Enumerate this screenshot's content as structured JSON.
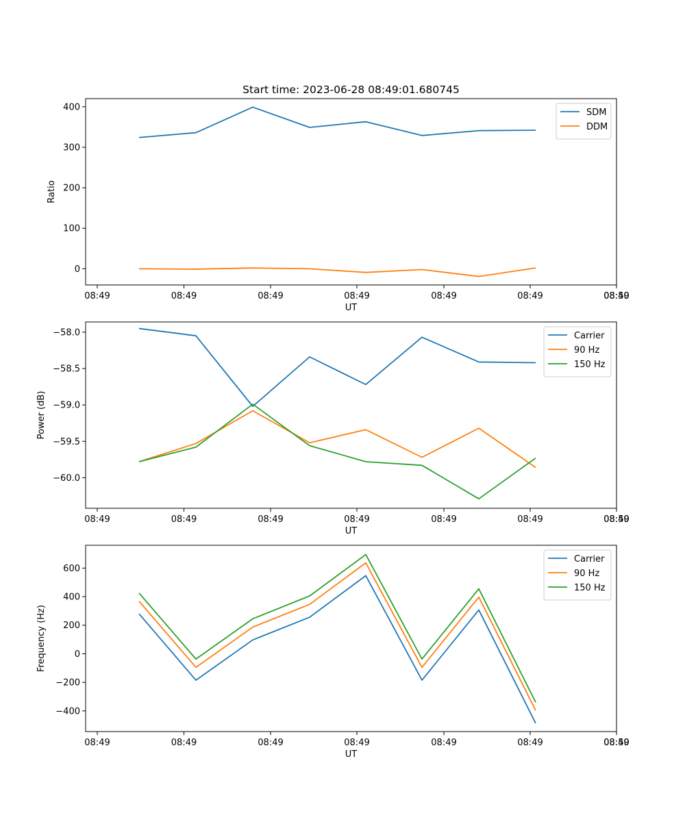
{
  "chart_data": {
    "title": "Start time: 2023-06-28 08:49:01.680745",
    "colors": {
      "blue": "#1f77b4",
      "orange": "#ff7f0e",
      "green": "#2ca02c"
    },
    "x_tick_labels": [
      "08:49",
      "08:49",
      "08:49",
      "08:49",
      "08:49",
      "08:49",
      "08:49",
      "08:50"
    ],
    "panels": [
      {
        "type": "line",
        "xlabel": "UT",
        "ylabel": "Ratio",
        "ylim": [
          -40,
          420
        ],
        "yticks": [
          0,
          100,
          200,
          300,
          400
        ],
        "ytick_labels": [
          "0",
          "100",
          "200",
          "300",
          "400"
        ],
        "legend_position": "top-right",
        "series": [
          {
            "name": "SDM",
            "color": "blue",
            "values": [
              324,
              336,
              399,
              349,
              363,
              329,
              341,
              342
            ]
          },
          {
            "name": "DDM",
            "color": "orange",
            "values": [
              0,
              -1,
              2,
              0,
              -9,
              -2,
              -19,
              2
            ]
          }
        ]
      },
      {
        "type": "line",
        "xlabel": "UT",
        "ylabel": "Power (dB)",
        "ylim": [
          -60.42,
          -57.86
        ],
        "yticks": [
          -58.0,
          -58.5,
          -59.0,
          -59.5,
          -60.0
        ],
        "ytick_labels": [
          "−58.0",
          "−58.5",
          "−59.0",
          "−59.5",
          "−60.0"
        ],
        "legend_position": "top-right",
        "series": [
          {
            "name": "Carrier",
            "color": "blue",
            "values": [
              -57.95,
              -58.05,
              -59.02,
              -58.34,
              -58.72,
              -58.07,
              -58.41,
              -58.42
            ]
          },
          {
            "name": "90 Hz",
            "color": "orange",
            "values": [
              -59.78,
              -59.53,
              -59.08,
              -59.52,
              -59.34,
              -59.72,
              -59.32,
              -59.86
            ]
          },
          {
            "name": "150 Hz",
            "color": "green",
            "values": [
              -59.78,
              -59.58,
              -58.99,
              -59.56,
              -59.78,
              -59.83,
              -60.29,
              -59.73
            ]
          }
        ]
      },
      {
        "type": "line",
        "xlabel": "UT",
        "ylabel": "Frequency (Hz)",
        "ylim": [
          -545,
          760
        ],
        "yticks": [
          600,
          400,
          200,
          0,
          -200,
          -400
        ],
        "ytick_labels": [
          "600",
          "400",
          "200",
          "0",
          "−200",
          "−400"
        ],
        "legend_position": "top-right",
        "series": [
          {
            "name": "Carrier",
            "color": "blue",
            "values": [
              280,
              -185,
              97,
              256,
              547,
              -185,
              307,
              -487
            ]
          },
          {
            "name": "90 Hz",
            "color": "orange",
            "values": [
              368,
              -95,
              187,
              346,
              637,
              -95,
              397,
              -397
            ]
          },
          {
            "name": "150 Hz",
            "color": "green",
            "values": [
              425,
              -37,
              245,
              405,
              695,
              -37,
              455,
              -340
            ]
          }
        ]
      }
    ]
  }
}
